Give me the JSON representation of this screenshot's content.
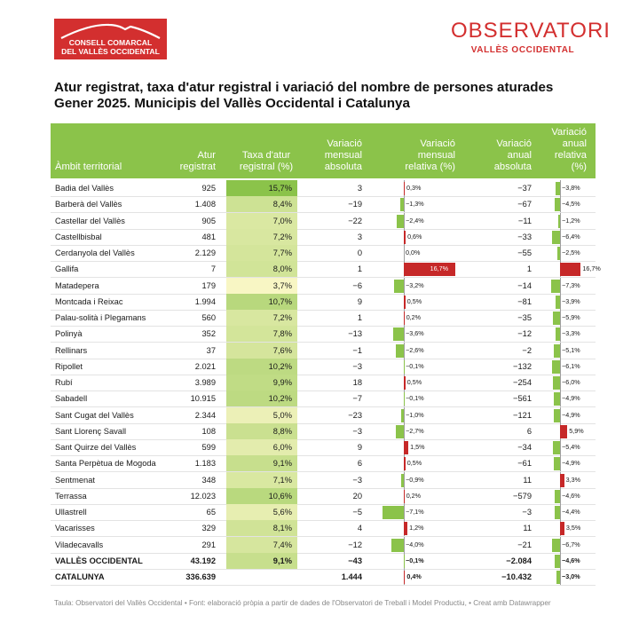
{
  "brand": {
    "left_line1": "CONSELL COMARCAL",
    "left_line2": "DEL VALLÈS OCCIDENTAL",
    "right_big": "OBSERVATORI",
    "right_small": "VALLÈS OCCIDENTAL"
  },
  "title_line1": "Atur registrat, taxa d'atur registral i variació del nombre de persones aturades",
  "title_line2": "Gener 2025. Municipis del Vallès Occidental i Catalunya",
  "headers": {
    "ambit": "Àmbit territorial",
    "atur": "Atur registrat",
    "taxa": "Taxa d'atur registral (%)",
    "vma": "Variació mensual absoluta",
    "vmr": "Variació mensual relativa (%)",
    "vaa": "Variació anual absoluta",
    "var": "Variació anual relativa (%)"
  },
  "colors": {
    "header_bg": "#8bc34a",
    "positive_bar": "#c62828",
    "negative_bar": "#8bc34a"
  },
  "rows": [
    {
      "name": "Badia del Vallès",
      "atur": "925",
      "taxa": "15,7%",
      "taxa_v": 15.7,
      "vma": "3",
      "vmr": "0,3%",
      "vmr_v": 0.3,
      "vaa": "−37",
      "var": "−3,8%",
      "var_v": -3.8
    },
    {
      "name": "Barberà del Vallès",
      "atur": "1.408",
      "taxa": "8,4%",
      "taxa_v": 8.4,
      "vma": "−19",
      "vmr": "−1,3%",
      "vmr_v": -1.3,
      "vaa": "−67",
      "var": "−4,5%",
      "var_v": -4.5
    },
    {
      "name": "Castellar del Vallès",
      "atur": "905",
      "taxa": "7,0%",
      "taxa_v": 7.0,
      "vma": "−22",
      "vmr": "−2,4%",
      "vmr_v": -2.4,
      "vaa": "−11",
      "var": "−1,2%",
      "var_v": -1.2
    },
    {
      "name": "Castellbisbal",
      "atur": "481",
      "taxa": "7,2%",
      "taxa_v": 7.2,
      "vma": "3",
      "vmr": "0,6%",
      "vmr_v": 0.6,
      "vaa": "−33",
      "var": "−6,4%",
      "var_v": -6.4
    },
    {
      "name": "Cerdanyola del Vallès",
      "atur": "2.129",
      "taxa": "7,7%",
      "taxa_v": 7.7,
      "vma": "0",
      "vmr": "0,0%",
      "vmr_v": 0.0,
      "vaa": "−55",
      "var": "−2,5%",
      "var_v": -2.5
    },
    {
      "name": "Gallifa",
      "atur": "7",
      "taxa": "8,0%",
      "taxa_v": 8.0,
      "vma": "1",
      "vmr": "16,7%",
      "vmr_v": 16.7,
      "vaa": "1",
      "var": "16,7%",
      "var_v": 16.7
    },
    {
      "name": "Matadepera",
      "atur": "179",
      "taxa": "3,7%",
      "taxa_v": 3.7,
      "vma": "−6",
      "vmr": "−3,2%",
      "vmr_v": -3.2,
      "vaa": "−14",
      "var": "−7,3%",
      "var_v": -7.3
    },
    {
      "name": "Montcada i Reixac",
      "atur": "1.994",
      "taxa": "10,7%",
      "taxa_v": 10.7,
      "vma": "9",
      "vmr": "0,5%",
      "vmr_v": 0.5,
      "vaa": "−81",
      "var": "−3,9%",
      "var_v": -3.9
    },
    {
      "name": "Palau-solità i Plegamans",
      "atur": "560",
      "taxa": "7,2%",
      "taxa_v": 7.2,
      "vma": "1",
      "vmr": "0,2%",
      "vmr_v": 0.2,
      "vaa": "−35",
      "var": "−5,9%",
      "var_v": -5.9
    },
    {
      "name": "Polinyà",
      "atur": "352",
      "taxa": "7,8%",
      "taxa_v": 7.8,
      "vma": "−13",
      "vmr": "−3,6%",
      "vmr_v": -3.6,
      "vaa": "−12",
      "var": "−3,3%",
      "var_v": -3.3
    },
    {
      "name": "Rellinars",
      "atur": "37",
      "taxa": "7,6%",
      "taxa_v": 7.6,
      "vma": "−1",
      "vmr": "−2,6%",
      "vmr_v": -2.6,
      "vaa": "−2",
      "var": "−5,1%",
      "var_v": -5.1
    },
    {
      "name": "Ripollet",
      "atur": "2.021",
      "taxa": "10,2%",
      "taxa_v": 10.2,
      "vma": "−3",
      "vmr": "−0,1%",
      "vmr_v": -0.1,
      "vaa": "−132",
      "var": "−6,1%",
      "var_v": -6.1
    },
    {
      "name": "Rubí",
      "atur": "3.989",
      "taxa": "9,9%",
      "taxa_v": 9.9,
      "vma": "18",
      "vmr": "0,5%",
      "vmr_v": 0.5,
      "vaa": "−254",
      "var": "−6,0%",
      "var_v": -6.0
    },
    {
      "name": "Sabadell",
      "atur": "10.915",
      "taxa": "10,2%",
      "taxa_v": 10.2,
      "vma": "−7",
      "vmr": "−0,1%",
      "vmr_v": -0.1,
      "vaa": "−561",
      "var": "−4,9%",
      "var_v": -4.9
    },
    {
      "name": "Sant Cugat del Vallès",
      "atur": "2.344",
      "taxa": "5,0%",
      "taxa_v": 5.0,
      "vma": "−23",
      "vmr": "−1,0%",
      "vmr_v": -1.0,
      "vaa": "−121",
      "var": "−4,9%",
      "var_v": -4.9
    },
    {
      "name": "Sant Llorenç Savall",
      "atur": "108",
      "taxa": "8,8%",
      "taxa_v": 8.8,
      "vma": "−3",
      "vmr": "−2,7%",
      "vmr_v": -2.7,
      "vaa": "6",
      "var": "5,9%",
      "var_v": 5.9
    },
    {
      "name": "Sant Quirze del Vallès",
      "atur": "599",
      "taxa": "6,0%",
      "taxa_v": 6.0,
      "vma": "9",
      "vmr": "1,5%",
      "vmr_v": 1.5,
      "vaa": "−34",
      "var": "−5,4%",
      "var_v": -5.4
    },
    {
      "name": "Santa Perpètua de Mogoda",
      "atur": "1.183",
      "taxa": "9,1%",
      "taxa_v": 9.1,
      "vma": "6",
      "vmr": "0,5%",
      "vmr_v": 0.5,
      "vaa": "−61",
      "var": "−4,9%",
      "var_v": -4.9
    },
    {
      "name": "Sentmenat",
      "atur": "348",
      "taxa": "7,1%",
      "taxa_v": 7.1,
      "vma": "−3",
      "vmr": "−0,9%",
      "vmr_v": -0.9,
      "vaa": "11",
      "var": "3,3%",
      "var_v": 3.3
    },
    {
      "name": "Terrassa",
      "atur": "12.023",
      "taxa": "10,6%",
      "taxa_v": 10.6,
      "vma": "20",
      "vmr": "0,2%",
      "vmr_v": 0.2,
      "vaa": "−579",
      "var": "−4,6%",
      "var_v": -4.6
    },
    {
      "name": "Ullastrell",
      "atur": "65",
      "taxa": "5,6%",
      "taxa_v": 5.6,
      "vma": "−5",
      "vmr": "−7,1%",
      "vmr_v": -7.1,
      "vaa": "−3",
      "var": "−4,4%",
      "var_v": -4.4
    },
    {
      "name": "Vacarisses",
      "atur": "329",
      "taxa": "8,1%",
      "taxa_v": 8.1,
      "vma": "4",
      "vmr": "1,2%",
      "vmr_v": 1.2,
      "vaa": "11",
      "var": "3,5%",
      "var_v": 3.5
    },
    {
      "name": "Viladecavalls",
      "atur": "291",
      "taxa": "7,4%",
      "taxa_v": 7.4,
      "vma": "−12",
      "vmr": "−4,0%",
      "vmr_v": -4.0,
      "vaa": "−21",
      "var": "−6,7%",
      "var_v": -6.7
    },
    {
      "name": "VALLÈS OCCIDENTAL",
      "atur": "43.192",
      "taxa": "9,1%",
      "taxa_v": 9.1,
      "vma": "−43",
      "vmr": "−0,1%",
      "vmr_v": -0.1,
      "vaa": "−2.084",
      "var": "−4,6%",
      "var_v": -4.6,
      "total": true
    },
    {
      "name": "CATALUNYA",
      "atur": "336.639",
      "taxa": "",
      "taxa_v": null,
      "vma": "1.444",
      "vmr": "0,4%",
      "vmr_v": 0.4,
      "vaa": "−10.432",
      "var": "−3,0%",
      "var_v": -3.0,
      "total": true
    }
  ],
  "footer": "Taula: Observatori del Vallès Occidental • Font: elaboració pròpia a partir de dades de l'Observatori de Treball i Model Productiu,  • Creat amb Datawrapper"
}
